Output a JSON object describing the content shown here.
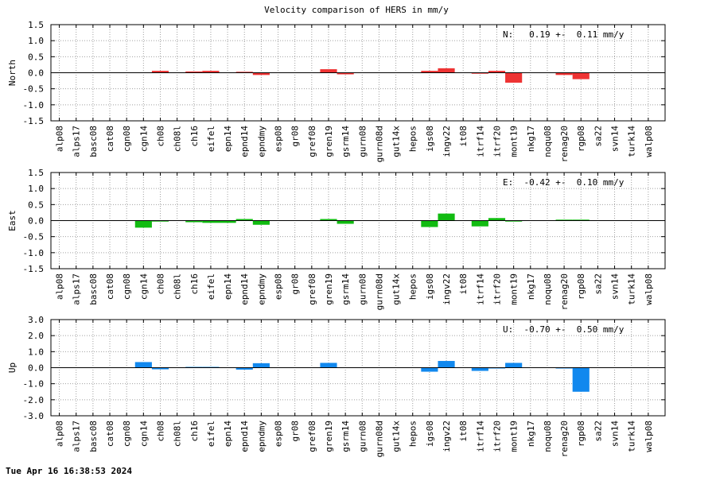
{
  "page": {
    "title": "Velocity comparison of HERS in mm/y",
    "timestamp": "Tue Apr 16 16:38:53 2024"
  },
  "chart_data": {
    "type": "bar",
    "title": "Velocity comparison of HERS in mm/y",
    "categories": [
      "alp08",
      "alps17",
      "basc08",
      "cat08",
      "cgn08",
      "cgn14",
      "ch08",
      "ch08l",
      "ch16",
      "eifel",
      "epn14",
      "epnd14",
      "epndmy",
      "esp08",
      "gr08",
      "gref08",
      "gren19",
      "gsrm14",
      "gurn08",
      "gurn08d",
      "gut14x",
      "hepos",
      "igs08",
      "ingv22",
      "it08",
      "itrf14",
      "itrf20",
      "mont19",
      "nkg17",
      "noqu08",
      "renag20",
      "rgp08",
      "sa22",
      "svn14",
      "turk14",
      "walp08"
    ],
    "grid": true,
    "panels": [
      {
        "name": "North",
        "ylabel": "North",
        "color": "#ee3333",
        "ylim": [
          -1.5,
          1.5
        ],
        "yticks": [
          "1.5",
          "1.0",
          "0.5",
          "0.0",
          "-0.5",
          "-1.0",
          "-1.5"
        ],
        "annotation": "N:   0.19 +-  0.11 mm/y",
        "values": [
          0,
          0,
          0,
          0,
          0,
          0,
          0.06,
          0,
          0.04,
          0.06,
          0,
          0.03,
          -0.07,
          0,
          0,
          0,
          0.11,
          -0.05,
          0,
          0,
          0,
          0,
          0.06,
          0.14,
          0,
          -0.03,
          0.06,
          -0.31,
          0,
          0,
          -0.07,
          -0.2,
          0,
          0,
          0,
          0
        ]
      },
      {
        "name": "East",
        "ylabel": "East",
        "color": "#11bb11",
        "ylim": [
          -1.5,
          1.5
        ],
        "yticks": [
          "1.5",
          "1.0",
          "0.5",
          "0.0",
          "-0.5",
          "-1.0",
          "-1.5"
        ],
        "annotation": "E:  -0.42 +-  0.10 mm/y",
        "values": [
          0,
          0,
          0,
          0,
          0,
          -0.22,
          -0.03,
          0,
          -0.05,
          -0.07,
          -0.07,
          0.05,
          -0.13,
          0,
          0,
          0,
          0.05,
          -0.1,
          0,
          0,
          0,
          0,
          -0.2,
          0.22,
          0,
          -0.18,
          0.08,
          -0.03,
          0,
          0,
          0.03,
          0.03,
          0,
          0,
          0,
          0
        ]
      },
      {
        "name": "Up",
        "ylabel": "Up",
        "color": "#1188ee",
        "ylim": [
          -3.0,
          3.0
        ],
        "yticks": [
          "3.0",
          "2.0",
          "1.0",
          "0.0",
          "-1.0",
          "-2.0",
          "-3.0"
        ],
        "annotation": "U:  -0.70 +-  0.50 mm/y",
        "values": [
          0,
          0,
          0,
          0,
          0,
          0.35,
          -0.1,
          0,
          0.05,
          0.05,
          0,
          -0.12,
          0.28,
          0,
          0,
          0,
          0.3,
          0,
          0,
          0,
          0,
          0,
          -0.25,
          0.42,
          0,
          -0.2,
          -0.05,
          0.3,
          0,
          0,
          -0.05,
          -1.5,
          0,
          0,
          0,
          0
        ]
      }
    ]
  }
}
